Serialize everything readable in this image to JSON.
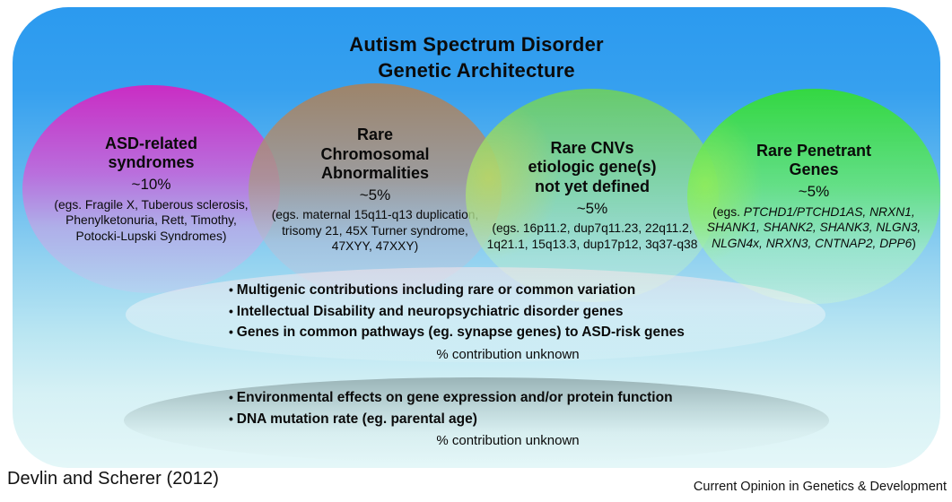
{
  "title": {
    "line1": "Autism Spectrum Disorder",
    "line2": "Genetic Architecture"
  },
  "ellipses": [
    {
      "id": "asd-related-syndromes",
      "heading_lines": [
        "ASD-related",
        "syndromes"
      ],
      "percent": "~10%",
      "examples": "(egs. Fragile X, Tuberous sclerosis, Phenylketonuria, Rett, Timothy, Potocki-Lupski Syndromes)",
      "top_color": "#d028c2"
    },
    {
      "id": "rare-chromosomal-abnormalities",
      "heading_lines": [
        "Rare",
        "Chromosomal",
        "Abnormalities"
      ],
      "percent": "~5%",
      "examples": "(egs. maternal 15q11-q13 duplication, trisomy 21, 45X Turner syndrome, 47XYY, 47XXY)",
      "top_color": "#a38363"
    },
    {
      "id": "rare-cnvs",
      "heading_lines": [
        "Rare CNVs",
        "etiologic gene(s)",
        "not yet defined"
      ],
      "percent": "~5%",
      "examples": "(egs. 16p11.2, dup7q11.23, 22q11.2, 1q21.1, 15q13.3, dup17p12, 3q37-q38",
      "top_color": "#6cce62"
    },
    {
      "id": "rare-penetrant-genes",
      "heading_lines": [
        "Rare Penetrant",
        "Genes"
      ],
      "percent": "~5%",
      "examples_prefix": "(egs. ",
      "examples_italic": "PTCHD1/PTCHD1AS, NRXN1, SHANK1, SHANK2, SHANK3, NLGN3, NLGN4x, NRXN3, CNTNAP2, DPP6",
      "examples_suffix": ")",
      "top_color": "#34da3a"
    }
  ],
  "multigenic_section": {
    "bullets": [
      "Multigenic contributions including rare or common variation",
      "Intellectual Disability and neuropsychiatric disorder genes",
      "Genes in common pathways (eg. synapse genes) to ASD-risk genes"
    ],
    "note": "% contribution unknown"
  },
  "environment_section": {
    "bullets": [
      "Environmental effects on gene expression and/or protein function",
      "DNA mutation rate (eg. parental age)"
    ],
    "note": "% contribution unknown"
  },
  "footer": {
    "citation": "Devlin and Scherer (2012)",
    "journal": "Current Opinion in Genetics & Development"
  },
  "colors": {
    "panel_top_blue": "#2b9aef",
    "panel_bottom_cyan": "#e4f7f8",
    "magenta": "#d028c2",
    "brown": "#a38363",
    "yellow_green": "#6cce62",
    "bright_green": "#34da3a",
    "overlap_salmon": "#f0827a",
    "overlap_olive": "#c9c754",
    "gray_ellipse": "#9ab1b4"
  }
}
